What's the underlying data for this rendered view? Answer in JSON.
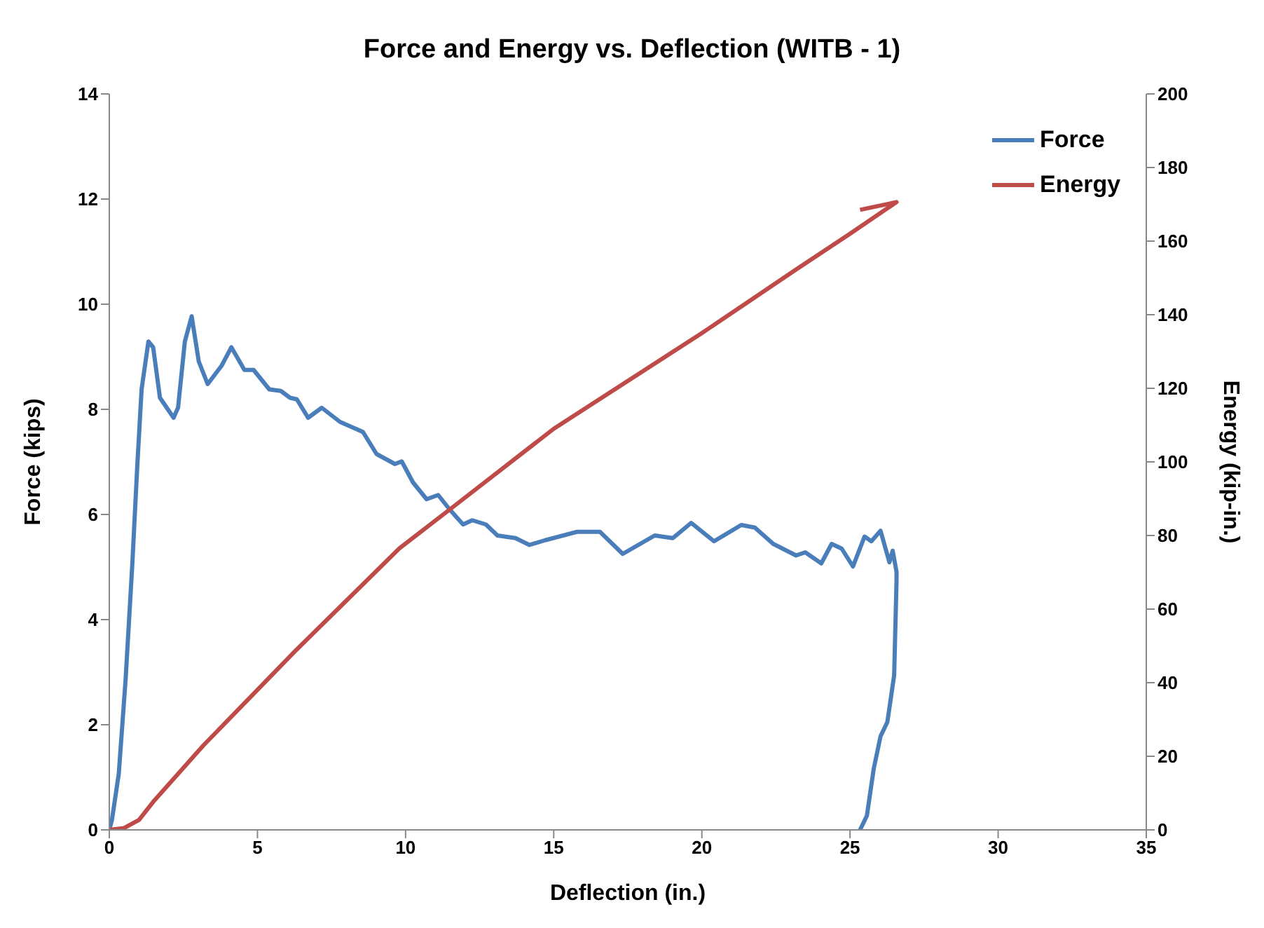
{
  "chart_data": {
    "type": "line",
    "title": "Force and Energy  vs. Deflection (WITB - 1)",
    "xlabel": "Deflection (in.)",
    "ylabel": "Force (kips)",
    "y2label": "Energy (kip-in.)",
    "xlim": [
      0,
      35
    ],
    "xticks": [
      0,
      5,
      10,
      15,
      20,
      25,
      30,
      35
    ],
    "ylim": [
      0,
      14
    ],
    "yticks": [
      0,
      2,
      4,
      6,
      8,
      10,
      12,
      14
    ],
    "y2lim": [
      0,
      200
    ],
    "y2ticks": [
      0,
      20,
      40,
      60,
      80,
      100,
      120,
      140,
      160,
      180,
      200
    ],
    "grid": false,
    "legend": "top right",
    "marker": "none",
    "line_style": "solid",
    "series": [
      {
        "name": "Force",
        "color": "#4a7ebb",
        "x": [
          0,
          0.09,
          0.32,
          0.55,
          0.78,
          0.94,
          1.09,
          1.32,
          1.48,
          1.71,
          2.17,
          2.32,
          2.55,
          2.78,
          3.02,
          3.32,
          3.79,
          4.12,
          4.56,
          4.87,
          5.4,
          5.79,
          6.1,
          6.33,
          6.71,
          7.17,
          7.79,
          8.56,
          9.02,
          9.64,
          9.87,
          10.25,
          10.71,
          11.1,
          11.48,
          11.94,
          12.25,
          12.71,
          13.1,
          13.71,
          14.18,
          14.71,
          15.79,
          16.56,
          17.33,
          18.41,
          19.02,
          19.64,
          20.41,
          21.33,
          21.79,
          22.41,
          23.18,
          23.49,
          24.03,
          24.38,
          24.72,
          25.1,
          25.49,
          25.72,
          26.03,
          26.33,
          26.44,
          26.57,
          26.57,
          26.49,
          26.26,
          26.03,
          25.8,
          25.57,
          25.34
        ],
        "values": [
          0,
          0.19,
          1.07,
          2.86,
          5.09,
          6.88,
          8.38,
          9.29,
          9.18,
          8.22,
          7.84,
          8.03,
          9.29,
          9.77,
          8.91,
          8.48,
          8.83,
          9.18,
          8.75,
          8.75,
          8.38,
          8.35,
          8.22,
          8.19,
          7.84,
          8.03,
          7.76,
          7.57,
          7.15,
          6.96,
          7.01,
          6.61,
          6.29,
          6.37,
          6.1,
          5.81,
          5.89,
          5.81,
          5.6,
          5.55,
          5.42,
          5.51,
          5.67,
          5.67,
          5.25,
          5.6,
          5.55,
          5.84,
          5.49,
          5.8,
          5.75,
          5.44,
          5.22,
          5.28,
          5.07,
          5.44,
          5.35,
          5.01,
          5.58,
          5.49,
          5.69,
          5.09,
          5.31,
          4.91,
          4.73,
          2.94,
          2.05,
          1.78,
          1.16,
          0.27,
          0
        ]
      },
      {
        "name": "Energy",
        "color": "#be4b48",
        "axis": "y2",
        "x": [
          0,
          0.5,
          1.0,
          1.48,
          3.17,
          6.25,
          9.79,
          11.64,
          15,
          20,
          23.18,
          25,
          26.57,
          25.34
        ],
        "values": [
          0,
          0.5,
          2.7,
          7.6,
          22.9,
          48.4,
          76.5,
          88,
          109,
          135,
          152.3,
          162,
          170.6,
          168.5
        ]
      }
    ]
  }
}
